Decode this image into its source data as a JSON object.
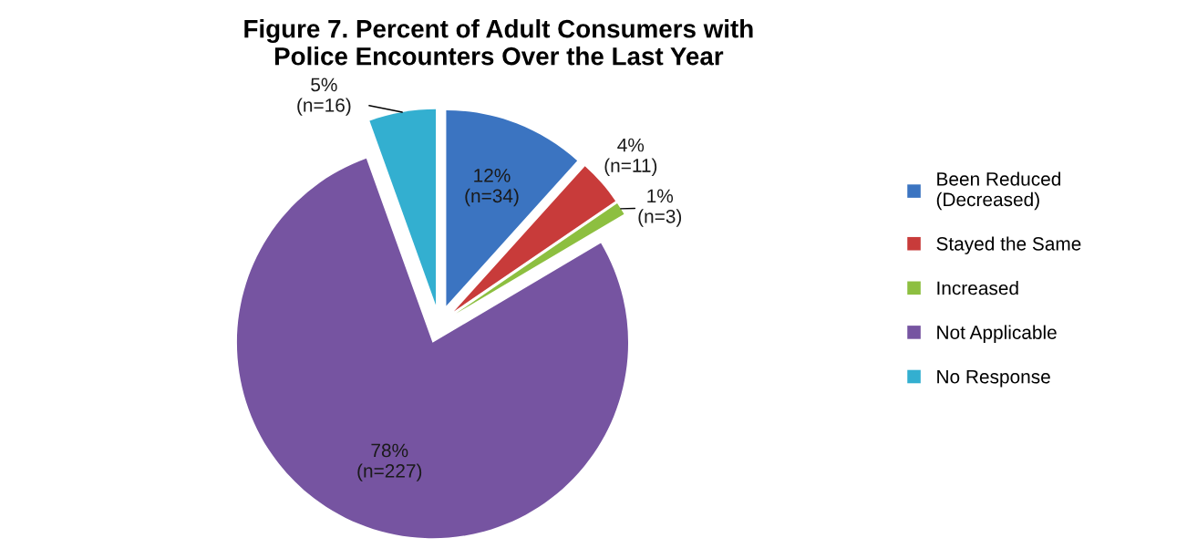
{
  "chart_data": {
    "type": "pie",
    "title": "Figure 7. Percent of Adult Consumers with\nPolice Encounters Over the Last Year",
    "categories": [
      "Been Reduced\n(Decreased)",
      "Stayed the Same",
      "Increased",
      "Not Applicable",
      "No Response"
    ],
    "values": [
      34,
      11,
      3,
      227,
      16
    ],
    "colors": [
      "#3b74c1",
      "#c83b3a",
      "#8dbf40",
      "#7654a1",
      "#33afd0"
    ],
    "value_labels": [
      "12%\n(n=34)",
      "4%\n(n=11)",
      "1%\n(n=3)",
      "78%\n(n=227)",
      "5%\n(n=16)"
    ],
    "legend": "right"
  }
}
